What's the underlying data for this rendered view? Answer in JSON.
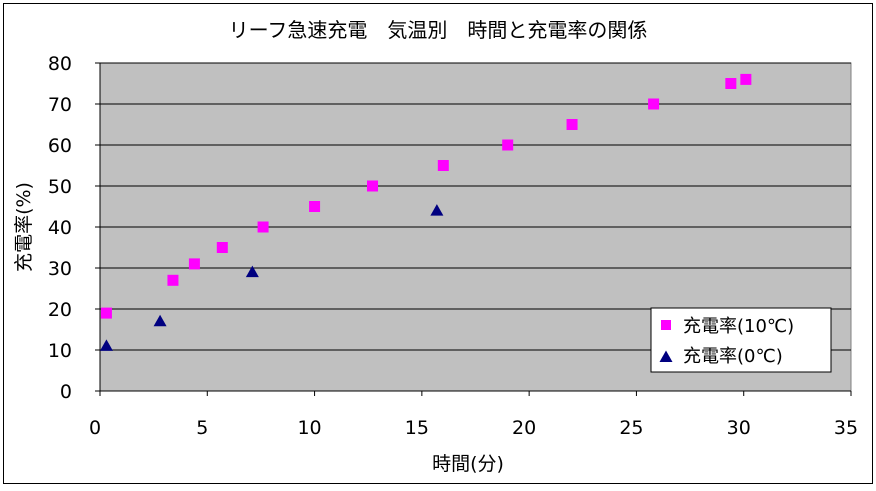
{
  "chart_data": {
    "type": "scatter",
    "title": "リーフ急速充電　気温別　時間と充電率の関係",
    "xlabel": "時間(分)",
    "ylabel": "充電率(%)",
    "xlim": [
      0,
      35
    ],
    "ylim": [
      0,
      80
    ],
    "xticks": [
      0,
      5,
      10,
      15,
      20,
      25,
      30,
      35
    ],
    "yticks": [
      0,
      10,
      20,
      30,
      40,
      50,
      60,
      70,
      80
    ],
    "grid": "horizontal",
    "legend_position": "bottom-right",
    "plot_background": "#c0c0c0",
    "series": [
      {
        "name": "充電率(10℃)",
        "marker": "square",
        "color": "#ff00ff",
        "points": [
          {
            "x": 0.3,
            "y": 19
          },
          {
            "x": 3.4,
            "y": 27
          },
          {
            "x": 4.4,
            "y": 31
          },
          {
            "x": 5.7,
            "y": 35
          },
          {
            "x": 7.6,
            "y": 40
          },
          {
            "x": 10.0,
            "y": 45
          },
          {
            "x": 12.7,
            "y": 50
          },
          {
            "x": 16.0,
            "y": 55
          },
          {
            "x": 19.0,
            "y": 60
          },
          {
            "x": 22.0,
            "y": 65
          },
          {
            "x": 25.8,
            "y": 70
          },
          {
            "x": 29.4,
            "y": 75
          },
          {
            "x": 30.1,
            "y": 76
          }
        ]
      },
      {
        "name": "充電率(0℃)",
        "marker": "triangle",
        "color": "#000080",
        "points": [
          {
            "x": 0.3,
            "y": 11
          },
          {
            "x": 2.8,
            "y": 17
          },
          {
            "x": 7.1,
            "y": 29
          },
          {
            "x": 15.7,
            "y": 44
          }
        ]
      }
    ]
  }
}
